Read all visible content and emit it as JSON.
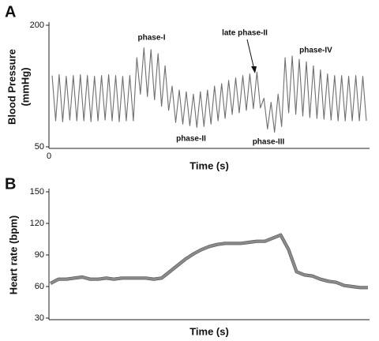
{
  "chart_data": [
    {
      "type": "line",
      "panel": "A",
      "ylabel": "Blood Pressure",
      "ylabel_unit": "(mmHg)",
      "xlabel": "Time (s)",
      "x_start_label": "0",
      "ylim": [
        50,
        200
      ],
      "yticks": [
        50,
        200
      ],
      "color": "#6f6f6f",
      "values": [
        138,
        82,
        139,
        81,
        137,
        83,
        138,
        82,
        139,
        82,
        138,
        81,
        137,
        82,
        138,
        83,
        139,
        82,
        138,
        81,
        137,
        82,
        138,
        82,
        160,
        115,
        172,
        112,
        170,
        108,
        165,
        100,
        150,
        95,
        125,
        80,
        120,
        78,
        118,
        76,
        115,
        74,
        118,
        75,
        120,
        78,
        125,
        82,
        128,
        85,
        132,
        90,
        135,
        92,
        138,
        95,
        140,
        97,
        142,
        98,
        110,
        72,
        105,
        68,
        115,
        75,
        160,
        92,
        162,
        90,
        158,
        88,
        155,
        86,
        150,
        85,
        145,
        84,
        140,
        83,
        138,
        82,
        138,
        82,
        137,
        82,
        138,
        82,
        137,
        82
      ],
      "annotations": [
        "phase-I",
        "phase-II",
        "late phase-II",
        "phase-III",
        "phase-IV"
      ]
    },
    {
      "type": "line",
      "panel": "B",
      "ylabel": "Heart rate (bpm)",
      "xlabel": "Time (s)",
      "ylim": [
        30,
        150
      ],
      "yticks": [
        30,
        60,
        90,
        120,
        150
      ],
      "color": "#8a8a8a",
      "values": [
        63,
        67,
        67,
        68,
        69,
        67,
        67,
        68,
        67,
        68,
        68,
        68,
        68,
        67,
        68,
        74,
        80,
        86,
        91,
        95,
        98,
        100,
        101,
        101,
        101,
        102,
        103,
        103,
        106,
        109,
        95,
        74,
        71,
        70,
        67,
        65,
        64,
        61,
        60,
        59,
        59
      ]
    }
  ]
}
